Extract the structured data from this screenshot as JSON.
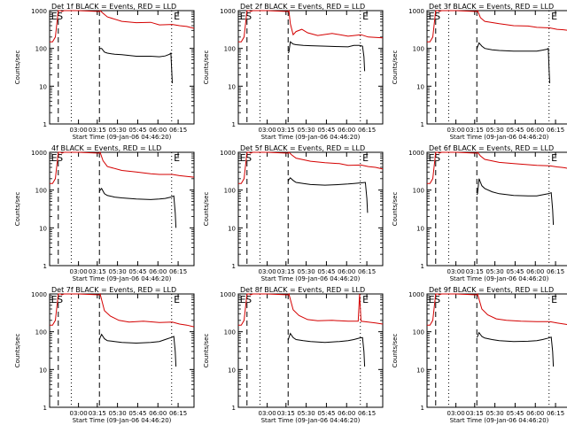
{
  "colors": {
    "events": "#000000",
    "lld": "#d40000",
    "axes": "#000000",
    "background": "#ffffff"
  },
  "layout": {
    "columns": 3,
    "rows": 3
  },
  "shared": {
    "ylabel": "Counts/sec",
    "xlabel": "Start Time (09-Jan-06 04:46:20)",
    "x_ticks": [
      "03:00",
      "03:15",
      "05:30",
      "05:45",
      "06:00",
      "06:15"
    ],
    "y_ticks": [
      "1",
      "10",
      "100",
      "1000"
    ],
    "markers": [
      {
        "label": "E",
        "pos": "left"
      },
      {
        "label": "S",
        "pos": "left"
      },
      {
        "label": "E",
        "pos": "right"
      }
    ]
  },
  "chart_data": [
    {
      "type": "line",
      "title": "Det 1f BLACK = Events, RED = LLD",
      "xlabel": "Start Time (09-Jan-06 04:46:20)",
      "ylabel": "Counts/sec",
      "yscale": "log",
      "ylim": [
        1,
        1000
      ],
      "x_ticks": [
        "03:00",
        "03:15",
        "05:30",
        "05:45",
        "06:00",
        "06:15"
      ],
      "series": [
        {
          "key": "lld",
          "x": [
            0.0,
            0.02,
            0.04,
            0.06,
            0.075,
            0.085,
            0.1,
            0.2,
            0.345,
            0.35,
            0.37,
            0.4,
            0.5,
            0.6,
            0.7,
            0.76,
            0.85,
            0.9,
            0.95,
            1.0
          ],
          "values": [
            150,
            150,
            200,
            1000,
            1000,
            950,
            1000,
            1000,
            950,
            1000,
            850,
            680,
            520,
            480,
            490,
            420,
            430,
            400,
            380,
            340
          ]
        },
        {
          "key": "events",
          "x": [
            0.345,
            0.35,
            0.36,
            0.38,
            0.4,
            0.45,
            0.5,
            0.6,
            0.7,
            0.76,
            0.8,
            0.83,
            0.84,
            0.845,
            0.85
          ],
          "values": [
            95,
            100,
            100,
            80,
            75,
            70,
            68,
            62,
            62,
            60,
            63,
            70,
            75,
            30,
            12
          ]
        }
      ]
    },
    {
      "type": "line",
      "title": "Det 2f BLACK = Events, RED = LLD",
      "xlabel": "Start Time (09-Jan-06 04:46:20)",
      "ylabel": "Counts/sec",
      "yscale": "log",
      "ylim": [
        1,
        1000
      ],
      "x_ticks": [
        "03:00",
        "03:15",
        "05:30",
        "05:45",
        "06:00",
        "06:15"
      ],
      "series": [
        {
          "key": "lld",
          "x": [
            0.0,
            0.02,
            0.04,
            0.06,
            0.075,
            0.085,
            0.1,
            0.2,
            0.345,
            0.35,
            0.36,
            0.38,
            0.4,
            0.44,
            0.48,
            0.55,
            0.65,
            0.76,
            0.85,
            0.9,
            1.0
          ],
          "values": [
            150,
            150,
            200,
            1000,
            1000,
            950,
            1000,
            1000,
            950,
            1000,
            450,
            230,
            280,
            320,
            260,
            220,
            250,
            210,
            230,
            200,
            190
          ]
        },
        {
          "key": "events",
          "x": [
            0.345,
            0.35,
            0.36,
            0.38,
            0.4,
            0.45,
            0.5,
            0.6,
            0.7,
            0.76,
            0.8,
            0.84,
            0.86,
            0.87,
            0.875
          ],
          "values": [
            75,
            80,
            150,
            130,
            125,
            120,
            118,
            115,
            112,
            110,
            120,
            120,
            115,
            60,
            25
          ]
        }
      ]
    },
    {
      "type": "line",
      "title": "Det 3f BLACK = Events, RED = LLD",
      "xlabel": "Start Time (09-Jan-06 04:46:20)",
      "ylabel": "Counts/sec",
      "yscale": "log",
      "ylim": [
        1,
        1000
      ],
      "x_ticks": [
        "03:00",
        "03:15",
        "05:30",
        "05:45",
        "06:00",
        "06:15"
      ],
      "series": [
        {
          "key": "lld",
          "x": [
            0.0,
            0.02,
            0.04,
            0.06,
            0.075,
            0.085,
            0.1,
            0.2,
            0.345,
            0.35,
            0.37,
            0.4,
            0.5,
            0.6,
            0.7,
            0.76,
            0.85,
            0.9,
            0.95,
            1.0
          ],
          "values": [
            150,
            150,
            200,
            1000,
            1000,
            950,
            1000,
            1000,
            950,
            1000,
            650,
            520,
            450,
            400,
            390,
            360,
            350,
            320,
            310,
            290
          ]
        },
        {
          "key": "events",
          "x": [
            0.345,
            0.35,
            0.36,
            0.38,
            0.4,
            0.45,
            0.5,
            0.6,
            0.7,
            0.76,
            0.8,
            0.83,
            0.84,
            0.845,
            0.85
          ],
          "values": [
            95,
            110,
            140,
            115,
            100,
            92,
            88,
            85,
            85,
            85,
            90,
            95,
            100,
            30,
            12
          ]
        }
      ]
    },
    {
      "type": "line",
      "title": "4f BLACK = Events, RED = LLD",
      "xlabel": "Start Time (09-Jan-06 04:46:20)",
      "ylabel": "Counts/sec",
      "yscale": "log",
      "ylim": [
        1,
        1000
      ],
      "x_ticks": [
        "03:00",
        "03:15",
        "05:30",
        "05:45",
        "06:00",
        "06:15"
      ],
      "series": [
        {
          "key": "lld",
          "x": [
            0.0,
            0.02,
            0.04,
            0.06,
            0.075,
            0.085,
            0.1,
            0.2,
            0.345,
            0.35,
            0.37,
            0.4,
            0.5,
            0.6,
            0.7,
            0.76,
            0.85,
            0.9,
            0.95,
            1.0
          ],
          "values": [
            150,
            150,
            200,
            1000,
            1000,
            950,
            1000,
            1000,
            950,
            1000,
            600,
            420,
            330,
            300,
            270,
            260,
            260,
            240,
            230,
            220
          ]
        },
        {
          "key": "events",
          "x": [
            0.345,
            0.35,
            0.36,
            0.38,
            0.4,
            0.45,
            0.5,
            0.6,
            0.7,
            0.76,
            0.8,
            0.84,
            0.86,
            0.87,
            0.875
          ],
          "values": [
            90,
            100,
            110,
            80,
            72,
            65,
            62,
            58,
            56,
            58,
            60,
            65,
            70,
            25,
            10
          ]
        }
      ]
    },
    {
      "type": "line",
      "title": "Det 5f BLACK = Events, RED = LLD",
      "xlabel": "Start Time (09-Jan-06 04:46:20)",
      "ylabel": "Counts/sec",
      "yscale": "log",
      "ylim": [
        1,
        1000
      ],
      "x_ticks": [
        "03:00",
        "03:15",
        "05:30",
        "05:45",
        "06:00",
        "06:15"
      ],
      "series": [
        {
          "key": "lld",
          "x": [
            0.0,
            0.02,
            0.04,
            0.06,
            0.075,
            0.085,
            0.1,
            0.2,
            0.345,
            0.35,
            0.37,
            0.4,
            0.5,
            0.6,
            0.7,
            0.76,
            0.85,
            0.9,
            0.95,
            1.0
          ],
          "values": [
            150,
            150,
            200,
            1000,
            1000,
            950,
            1000,
            1000,
            950,
            1000,
            850,
            700,
            580,
            530,
            500,
            450,
            460,
            420,
            400,
            360
          ]
        },
        {
          "key": "events",
          "x": [
            0.345,
            0.35,
            0.36,
            0.38,
            0.4,
            0.45,
            0.5,
            0.6,
            0.7,
            0.76,
            0.8,
            0.85,
            0.88,
            0.89,
            0.895
          ],
          "values": [
            170,
            190,
            210,
            180,
            160,
            150,
            140,
            135,
            140,
            145,
            150,
            155,
            160,
            60,
            25
          ]
        }
      ]
    },
    {
      "type": "line",
      "title": "Det 6f BLACK = Events, RED = LLD",
      "xlabel": "Start Time (09-Jan-06 04:46:20)",
      "ylabel": "Counts/sec",
      "yscale": "log",
      "ylim": [
        1,
        1000
      ],
      "x_ticks": [
        "03:00",
        "03:15",
        "05:30",
        "05:45",
        "06:00",
        "06:15"
      ],
      "series": [
        {
          "key": "lld",
          "x": [
            0.0,
            0.02,
            0.04,
            0.06,
            0.075,
            0.085,
            0.1,
            0.2,
            0.345,
            0.35,
            0.37,
            0.4,
            0.5,
            0.6,
            0.7,
            0.76,
            0.85,
            0.9,
            0.95,
            1.0
          ],
          "values": [
            150,
            150,
            200,
            1000,
            1000,
            950,
            1000,
            1000,
            950,
            1000,
            800,
            650,
            540,
            500,
            470,
            450,
            440,
            410,
            390,
            360
          ]
        },
        {
          "key": "events",
          "x": [
            0.345,
            0.35,
            0.36,
            0.38,
            0.4,
            0.45,
            0.5,
            0.6,
            0.7,
            0.76,
            0.8,
            0.84,
            0.86,
            0.87,
            0.875
          ],
          "values": [
            75,
            80,
            200,
            130,
            110,
            90,
            80,
            72,
            70,
            70,
            75,
            80,
            85,
            30,
            12
          ]
        }
      ]
    },
    {
      "type": "line",
      "title": "Det 7f BLACK = Events, RED = LLD",
      "xlabel": "Start Time (09-Jan-06 04:46:20)",
      "ylabel": "Counts/sec",
      "yscale": "log",
      "ylim": [
        1,
        1000
      ],
      "x_ticks": [
        "03:00",
        "03:15",
        "05:30",
        "05:45",
        "06:00",
        "06:15"
      ],
      "series": [
        {
          "key": "lld",
          "x": [
            0.0,
            0.02,
            0.04,
            0.06,
            0.075,
            0.085,
            0.1,
            0.2,
            0.345,
            0.35,
            0.38,
            0.42,
            0.48,
            0.55,
            0.65,
            0.76,
            0.85,
            0.9,
            0.95,
            1.0
          ],
          "values": [
            150,
            150,
            200,
            1000,
            1000,
            950,
            1000,
            1000,
            950,
            1000,
            360,
            260,
            200,
            180,
            190,
            175,
            180,
            160,
            150,
            135
          ]
        },
        {
          "key": "events",
          "x": [
            0.345,
            0.35,
            0.36,
            0.38,
            0.4,
            0.45,
            0.5,
            0.6,
            0.7,
            0.76,
            0.8,
            0.84,
            0.86,
            0.87,
            0.875
          ],
          "values": [
            60,
            70,
            85,
            65,
            58,
            55,
            52,
            50,
            52,
            55,
            62,
            70,
            75,
            30,
            12
          ]
        }
      ]
    },
    {
      "type": "line",
      "title": "Det 8f BLACK = Events, RED = LLD",
      "xlabel": "Start Time (09-Jan-06 04:46:20)",
      "ylabel": "Counts/sec",
      "yscale": "log",
      "ylim": [
        1,
        1000
      ],
      "x_ticks": [
        "03:00",
        "03:15",
        "05:30",
        "05:45",
        "06:00",
        "06:15"
      ],
      "series": [
        {
          "key": "lld",
          "x": [
            0.0,
            0.02,
            0.04,
            0.06,
            0.075,
            0.085,
            0.1,
            0.2,
            0.345,
            0.35,
            0.38,
            0.42,
            0.48,
            0.55,
            0.65,
            0.76,
            0.83,
            0.84,
            0.85,
            0.9,
            0.95,
            1.0
          ],
          "values": [
            150,
            150,
            200,
            1000,
            1000,
            950,
            1000,
            1000,
            950,
            1000,
            380,
            270,
            210,
            195,
            200,
            190,
            190,
            1000,
            190,
            180,
            170,
            160
          ]
        },
        {
          "key": "events",
          "x": [
            0.345,
            0.35,
            0.36,
            0.38,
            0.4,
            0.45,
            0.5,
            0.6,
            0.7,
            0.76,
            0.8,
            0.84,
            0.86,
            0.87,
            0.875
          ],
          "values": [
            60,
            70,
            90,
            70,
            62,
            58,
            55,
            52,
            55,
            58,
            62,
            68,
            70,
            30,
            12
          ]
        }
      ]
    },
    {
      "type": "line",
      "title": "Det 9f BLACK = Events, RED = LLD",
      "xlabel": "Start Time (09-Jan-06 04:46:20)",
      "ylabel": "Counts/sec",
      "yscale": "log",
      "ylim": [
        1,
        1000
      ],
      "x_ticks": [
        "03:00",
        "03:15",
        "05:30",
        "05:45",
        "06:00",
        "06:15"
      ],
      "series": [
        {
          "key": "lld",
          "x": [
            0.0,
            0.02,
            0.04,
            0.06,
            0.075,
            0.085,
            0.1,
            0.2,
            0.345,
            0.35,
            0.38,
            0.42,
            0.48,
            0.55,
            0.65,
            0.76,
            0.85,
            0.9,
            0.95,
            1.0
          ],
          "values": [
            150,
            150,
            200,
            1000,
            1000,
            950,
            1000,
            1000,
            950,
            1000,
            400,
            280,
            220,
            200,
            190,
            185,
            185,
            170,
            160,
            150
          ]
        },
        {
          "key": "events",
          "x": [
            0.345,
            0.35,
            0.36,
            0.38,
            0.4,
            0.45,
            0.5,
            0.6,
            0.7,
            0.76,
            0.8,
            0.84,
            0.86,
            0.87,
            0.875
          ],
          "values": [
            70,
            75,
            95,
            75,
            68,
            62,
            58,
            55,
            56,
            58,
            62,
            68,
            72,
            30,
            12
          ]
        }
      ]
    }
  ]
}
